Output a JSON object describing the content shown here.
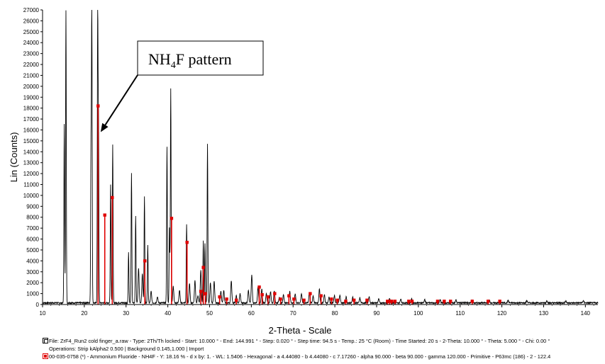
{
  "chart_data": {
    "type": "line",
    "title": "",
    "xlabel": "2-Theta - Scale",
    "ylabel": "Lin (Counts)",
    "xlim": [
      10,
      143
    ],
    "ylim": [
      0,
      27000
    ],
    "x_ticks": [
      10,
      20,
      30,
      40,
      50,
      60,
      70,
      80,
      90,
      100,
      110,
      120,
      130,
      140
    ],
    "y_ticks": [
      0,
      1000,
      2000,
      3000,
      4000,
      5000,
      6000,
      7000,
      8000,
      9000,
      10000,
      11000,
      12000,
      13000,
      14000,
      15000,
      16000,
      17000,
      18000,
      19000,
      20000,
      21000,
      22000,
      23000,
      24000,
      25000,
      26000,
      27000
    ],
    "grid": false,
    "colors": {
      "measured": "#000000",
      "reference": "#e00000"
    },
    "series": [
      {
        "style": "line",
        "baseline": 150,
        "peaks": [
          {
            "x": 15.2,
            "y": 16600
          },
          {
            "x": 15.6,
            "y": 27000
          },
          {
            "x": 21.6,
            "y": 14000
          },
          {
            "x": 21.8,
            "y": 27000
          },
          {
            "x": 23.2,
            "y": 27000
          },
          {
            "x": 23.4,
            "y": 16000
          },
          {
            "x": 26.3,
            "y": 11000
          },
          {
            "x": 26.8,
            "y": 14700
          },
          {
            "x": 30.6,
            "y": 4800
          },
          {
            "x": 31.3,
            "y": 12000
          },
          {
            "x": 32.3,
            "y": 8100
          },
          {
            "x": 33.0,
            "y": 3300
          },
          {
            "x": 33.9,
            "y": 2800
          },
          {
            "x": 34.4,
            "y": 9900
          },
          {
            "x": 35.2,
            "y": 5400
          },
          {
            "x": 36.0,
            "y": 1200
          },
          {
            "x": 37.5,
            "y": 700
          },
          {
            "x": 39.8,
            "y": 14500
          },
          {
            "x": 40.4,
            "y": 7000
          },
          {
            "x": 40.7,
            "y": 19800
          },
          {
            "x": 41.3,
            "y": 1700
          },
          {
            "x": 42.8,
            "y": 1300
          },
          {
            "x": 44.5,
            "y": 7400
          },
          {
            "x": 45.2,
            "y": 1900
          },
          {
            "x": 46.5,
            "y": 2200
          },
          {
            "x": 47.2,
            "y": 800
          },
          {
            "x": 47.9,
            "y": 3100
          },
          {
            "x": 48.5,
            "y": 5800
          },
          {
            "x": 48.9,
            "y": 5600
          },
          {
            "x": 49.5,
            "y": 14700
          },
          {
            "x": 50.2,
            "y": 2000
          },
          {
            "x": 51.1,
            "y": 2100
          },
          {
            "x": 52.7,
            "y": 1200
          },
          {
            "x": 53.4,
            "y": 1300
          },
          {
            "x": 55.2,
            "y": 2200
          },
          {
            "x": 56.4,
            "y": 800
          },
          {
            "x": 57.3,
            "y": 1000
          },
          {
            "x": 59.3,
            "y": 1300
          },
          {
            "x": 60.1,
            "y": 2700
          },
          {
            "x": 61.6,
            "y": 1600
          },
          {
            "x": 62.5,
            "y": 1400
          },
          {
            "x": 63.6,
            "y": 1000
          },
          {
            "x": 64.6,
            "y": 1200
          },
          {
            "x": 65.5,
            "y": 1300
          },
          {
            "x": 66.7,
            "y": 700
          },
          {
            "x": 67.7,
            "y": 900
          },
          {
            "x": 69.2,
            "y": 1200
          },
          {
            "x": 70.5,
            "y": 1000
          },
          {
            "x": 72.0,
            "y": 1000
          },
          {
            "x": 73.9,
            "y": 1100
          },
          {
            "x": 74.8,
            "y": 800
          },
          {
            "x": 76.3,
            "y": 1400
          },
          {
            "x": 77.5,
            "y": 900
          },
          {
            "x": 78.6,
            "y": 700
          },
          {
            "x": 79.9,
            "y": 800
          },
          {
            "x": 81.2,
            "y": 900
          },
          {
            "x": 82.7,
            "y": 700
          },
          {
            "x": 84.3,
            "y": 700
          },
          {
            "x": 86.0,
            "y": 600
          },
          {
            "x": 88.2,
            "y": 700
          },
          {
            "x": 90.5,
            "y": 500
          },
          {
            "x": 93.1,
            "y": 600
          },
          {
            "x": 95.8,
            "y": 500
          },
          {
            "x": 98.4,
            "y": 500
          },
          {
            "x": 101.5,
            "y": 450
          },
          {
            "x": 105.2,
            "y": 450
          },
          {
            "x": 109.0,
            "y": 420
          },
          {
            "x": 112.8,
            "y": 420
          },
          {
            "x": 117.0,
            "y": 400
          },
          {
            "x": 121.5,
            "y": 380
          },
          {
            "x": 126.0,
            "y": 370
          },
          {
            "x": 130.8,
            "y": 360
          },
          {
            "x": 135.3,
            "y": 350
          },
          {
            "x": 139.5,
            "y": 340
          }
        ]
      },
      {
        "style": "sticks",
        "points": [
          {
            "x": 23.3,
            "y": 18200
          },
          {
            "x": 24.9,
            "y": 8200
          },
          {
            "x": 26.7,
            "y": 9800
          },
          {
            "x": 34.5,
            "y": 4000
          },
          {
            "x": 40.9,
            "y": 7900
          },
          {
            "x": 44.6,
            "y": 5700
          },
          {
            "x": 47.9,
            "y": 1200
          },
          {
            "x": 48.5,
            "y": 3400
          },
          {
            "x": 49.0,
            "y": 1000
          },
          {
            "x": 52.4,
            "y": 700
          },
          {
            "x": 54.1,
            "y": 500
          },
          {
            "x": 56.4,
            "y": 400
          },
          {
            "x": 61.9,
            "y": 1600
          },
          {
            "x": 62.6,
            "y": 900
          },
          {
            "x": 64.0,
            "y": 700
          },
          {
            "x": 65.6,
            "y": 1000
          },
          {
            "x": 67.0,
            "y": 500
          },
          {
            "x": 69.0,
            "y": 800
          },
          {
            "x": 70.2,
            "y": 500
          },
          {
            "x": 72.6,
            "y": 400
          },
          {
            "x": 74.1,
            "y": 1000
          },
          {
            "x": 76.7,
            "y": 800
          },
          {
            "x": 79.2,
            "y": 500
          },
          {
            "x": 80.6,
            "y": 400
          },
          {
            "x": 82.6,
            "y": 300
          },
          {
            "x": 84.6,
            "y": 400
          },
          {
            "x": 87.7,
            "y": 400
          },
          {
            "x": 92.6,
            "y": 300
          },
          {
            "x": 93.1,
            "y": 300
          },
          {
            "x": 93.6,
            "y": 300
          },
          {
            "x": 94.4,
            "y": 300
          },
          {
            "x": 97.7,
            "y": 300
          },
          {
            "x": 98.5,
            "y": 300
          },
          {
            "x": 104.6,
            "y": 300
          },
          {
            "x": 106.2,
            "y": 300
          },
          {
            "x": 107.7,
            "y": 300
          },
          {
            "x": 112.9,
            "y": 300
          },
          {
            "x": 116.7,
            "y": 300
          },
          {
            "x": 119.5,
            "y": 300
          }
        ]
      }
    ],
    "annotations": [
      {
        "text_main": "NH",
        "text_sub": "4",
        "text_rest": "F pattern",
        "arrow_to": {
          "x": 23.4,
          "y": 16000
        }
      }
    ],
    "legend": {
      "position": "bottom",
      "entries": [
        {
          "icon": "black-line",
          "text": "File: ZrF4_Run2 cold finger_a.raw - Type: 2Th/Th locked - Start: 10.000 ° - End: 144.991 ° - Step: 0.020 ° - Step time: 94.5 s - Temp.: 25 °C (Room) - Time Started: 20 s - 2-Theta: 10.000 ° - Theta: 5.000 ° - Chi: 0.00 °"
        },
        {
          "icon": "none",
          "text": "Operations: Strip kAlpha2 0.500 | Background 0.145,1.000 | Import"
        },
        {
          "icon": "red-square",
          "text": "00-035-0758 (*) - Ammonium Fluoride - NH4F - Y: 18.16 % - d x by: 1. - WL: 1.5406 - Hexagonal - a 4.44080 - b 4.44080 - c 7.17260 - alpha 90.000 - beta 90.000 - gamma 120.000 - Primitive - P63mc (186) - 2 - 122.4"
        }
      ]
    }
  }
}
